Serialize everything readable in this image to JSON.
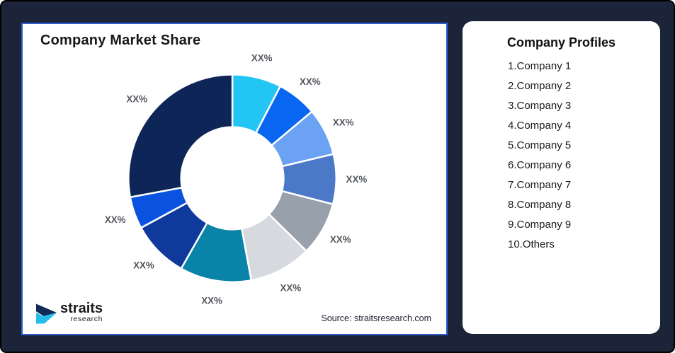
{
  "colors": {
    "frame_background": "#1B2439",
    "frame_border": "#000000",
    "left_card_border": "#2E5CD0",
    "card_background": "#FFFFFF",
    "title_text": "#17191C",
    "segment_label_text": "#53575E",
    "logo_navy": "#112A56",
    "logo_cyan": "#27BDEB"
  },
  "left_card": {
    "title": "Company Market Share",
    "source": "Source: straitsresearch.com",
    "logo": {
      "brand": "straits",
      "sub": "research"
    }
  },
  "right_card": {
    "title": "Company Profiles",
    "items": [
      "1.Company 1",
      "2.Company 2",
      "3.Company 3",
      "4.Company 4",
      "5.Company 5",
      "6.Company 6",
      "7.Company 7",
      "8.Company 8",
      "9.Company 9",
      "10.Others"
    ]
  },
  "chart_data": {
    "type": "pie",
    "variant": "donut",
    "title": "Company Market Share",
    "value_labels_masked": true,
    "legend_position": "none",
    "source_note": "Source: straitsresearch.com",
    "center": [
      298,
      220
    ],
    "outer_radius": 148,
    "inner_radius": 73,
    "label_radius": 177,
    "start_angle_deg": 0,
    "segments": [
      {
        "name": "segment-1",
        "label": "XX%",
        "angle_deg": 27.5,
        "share_pct_est": 7.6,
        "color": "#23C5F3"
      },
      {
        "name": "segment-2",
        "label": "XX%",
        "angle_deg": 22.5,
        "share_pct_est": 6.3,
        "color": "#0866F0"
      },
      {
        "name": "segment-3",
        "label": "XX%",
        "angle_deg": 26.5,
        "share_pct_est": 7.4,
        "color": "#6BA2F3"
      },
      {
        "name": "segment-4",
        "label": "XX%",
        "angle_deg": 28.0,
        "share_pct_est": 7.8,
        "color": "#4B79C7"
      },
      {
        "name": "segment-5",
        "label": "XX%",
        "angle_deg": 30.0,
        "share_pct_est": 8.3,
        "color": "#98A0AC"
      },
      {
        "name": "segment-6",
        "label": "XX%",
        "angle_deg": 35.0,
        "share_pct_est": 9.7,
        "color": "#D6D9DE"
      },
      {
        "name": "segment-7",
        "label": "XX%",
        "angle_deg": 40.0,
        "share_pct_est": 11.1,
        "color": "#0983A8"
      },
      {
        "name": "segment-8",
        "label": "XX%",
        "angle_deg": 32.0,
        "share_pct_est": 8.9,
        "color": "#0F3A9B"
      },
      {
        "name": "segment-9",
        "label": "XX%",
        "angle_deg": 18.0,
        "share_pct_est": 5.0,
        "color": "#0A52E0"
      },
      {
        "name": "segment-10",
        "label": "XX%",
        "angle_deg": 100.5,
        "share_pct_est": 27.9,
        "color": "#0D2557"
      }
    ]
  }
}
